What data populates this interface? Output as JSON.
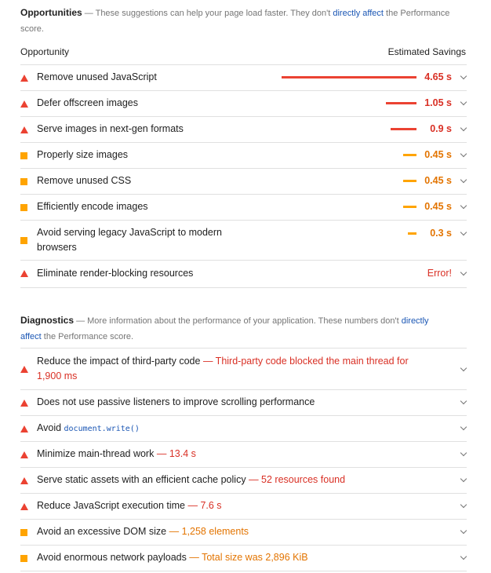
{
  "opportunities": {
    "title": "Opportunities",
    "sep": " — ",
    "desc_before": "These suggestions can help your page load faster. They don't ",
    "desc_link": "directly affect",
    "desc_after": " the Performance score.",
    "col_opportunity": "Opportunity",
    "col_savings": "Estimated Savings",
    "items": [
      {
        "label": "Remove unused JavaScript",
        "value": "4.65 s",
        "savings_s": 4.65,
        "severity": "fail"
      },
      {
        "label": "Defer offscreen images",
        "value": "1.05 s",
        "savings_s": 1.05,
        "severity": "fail"
      },
      {
        "label": "Serve images in next-gen formats",
        "value": "0.9 s",
        "savings_s": 0.9,
        "severity": "fail"
      },
      {
        "label": "Properly size images",
        "value": "0.45 s",
        "savings_s": 0.45,
        "severity": "average"
      },
      {
        "label": "Remove unused CSS",
        "value": "0.45 s",
        "savings_s": 0.45,
        "severity": "average"
      },
      {
        "label": "Efficiently encode images",
        "value": "0.45 s",
        "savings_s": 0.45,
        "severity": "average"
      },
      {
        "label_line1": "Avoid serving legacy JavaScript to modern",
        "label_line2": "browsers",
        "value": "0.3 s",
        "savings_s": 0.3,
        "severity": "average"
      },
      {
        "label": "Eliminate render-blocking resources",
        "value": "Error!",
        "severity": "fail"
      }
    ]
  },
  "diagnostics": {
    "title": "Diagnostics",
    "sep": " — ",
    "desc_before": "More information about the performance of your application. These numbers don't ",
    "desc_link1": "directly",
    "desc_link2": "affect",
    "desc_after": " the Performance score.",
    "items": [
      {
        "label": "Reduce the impact of third-party code",
        "detail_line1": "— Third-party code blocked the main thread for",
        "detail_line2": "1,900 ms",
        "severity": "fail"
      },
      {
        "label": "Does not use passive listeners to improve scrolling performance",
        "severity": "fail"
      },
      {
        "label": "Avoid ",
        "code": "document.write()",
        "severity": "fail"
      },
      {
        "label": "Minimize main-thread work",
        "detail": "— 13.4 s",
        "severity": "fail"
      },
      {
        "label": "Serve static assets with an efficient cache policy",
        "detail": "— 52 resources found",
        "severity": "fail"
      },
      {
        "label": "Reduce JavaScript execution time",
        "detail": "— 7.6 s",
        "severity": "fail"
      },
      {
        "label": "Avoid an excessive DOM size",
        "detail": "— 1,258 elements",
        "severity": "average"
      },
      {
        "label": "Avoid enormous network payloads",
        "detail": "— Total size was 2,896 KiB",
        "severity": "average"
      }
    ]
  },
  "colors": {
    "fail": "#eb4232",
    "average": "#ffa400",
    "link": "#1a56b4"
  }
}
